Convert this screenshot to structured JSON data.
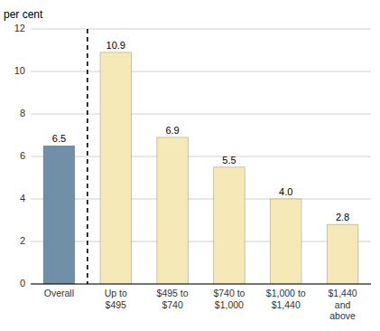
{
  "chart_data": {
    "type": "bar",
    "ylabel": "per cent",
    "categories": [
      "Overall",
      "Up to\n$495",
      "$495 to\n$740",
      "$740 to\n$1,000",
      "$1,000 to\n$1,440",
      "$1,440\nand\nabove"
    ],
    "values": [
      6.5,
      10.9,
      6.9,
      5.5,
      4.0,
      2.8
    ],
    "value_labels": [
      "6.5",
      "10.9",
      "6.9",
      "5.5",
      "4.0",
      "2.8"
    ],
    "colors": [
      "#7090aa",
      "#f5e9b8",
      "#f5e9b8",
      "#f5e9b8",
      "#f5e9b8",
      "#f5e9b8"
    ],
    "ylim": [
      0,
      12
    ],
    "yticks": [
      0,
      2,
      4,
      6,
      8,
      10,
      12
    ],
    "grid": true,
    "data_labels": true
  }
}
